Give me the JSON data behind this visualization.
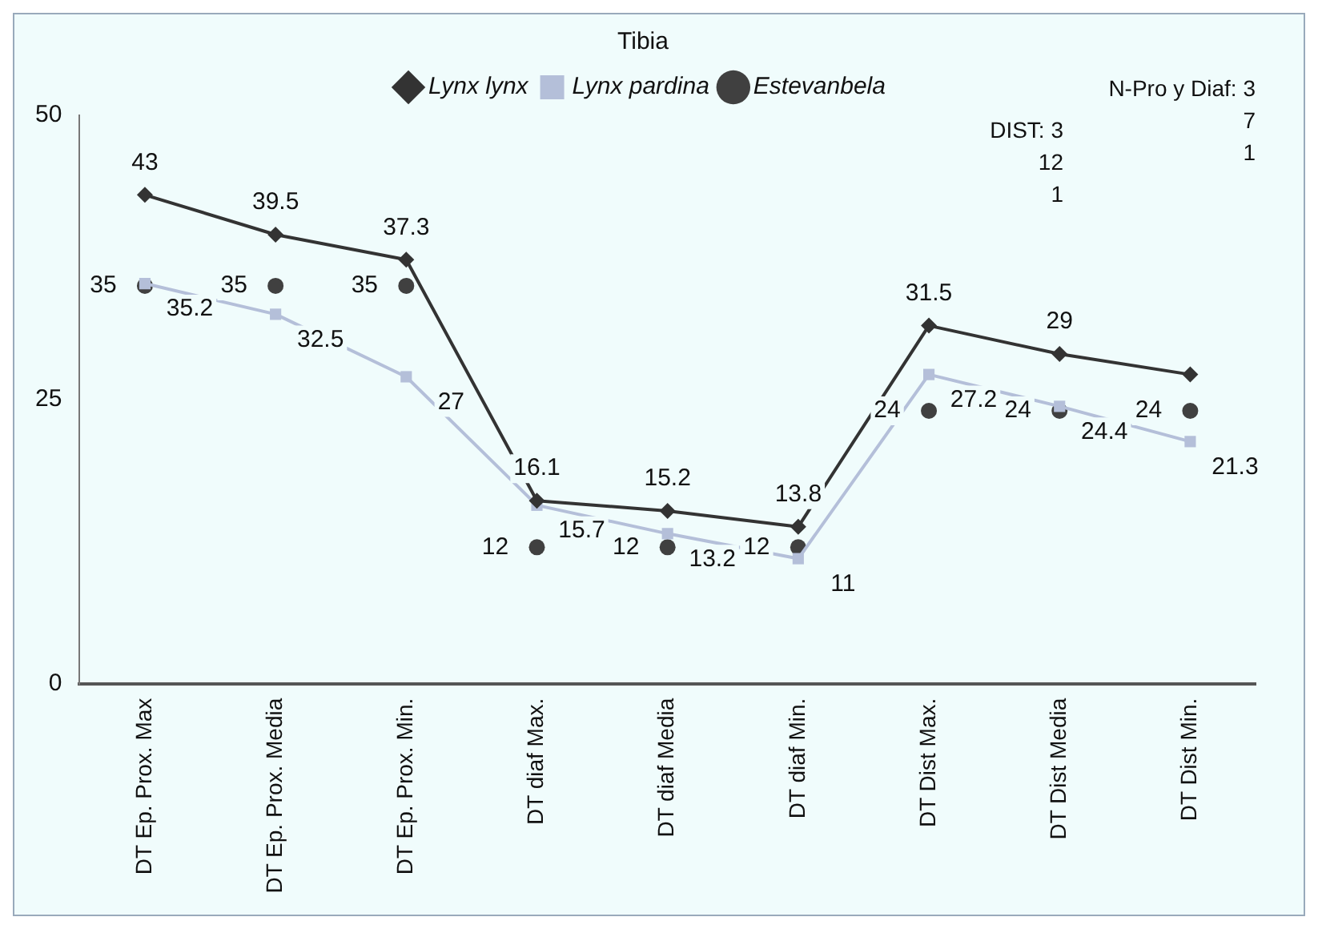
{
  "chart_data": {
    "type": "line",
    "categories": [
      "DT Ep. Prox. Max",
      "DT Ep. Prox. Media",
      "DT Ep. Prox. Min.",
      "DT diaf Max.",
      "DT diaf Media",
      "DT diaf Min.",
      "DT Dist Max.",
      "DT Dist Media",
      "DT Dist Min."
    ],
    "series": [
      {
        "name": "Lynx lynx",
        "color": "#333333",
        "marker": "diamond",
        "values": [
          43,
          39.5,
          37.3,
          16.1,
          15.2,
          13.8,
          31.5,
          29,
          27.2
        ],
        "value_labels": [
          "43",
          "39.5",
          "37.3",
          "16.1",
          "15.2",
          "13.8",
          "31.5",
          "29",
          null
        ]
      },
      {
        "name": "Lynx pardina",
        "color": "#b4bfd9",
        "marker": "square",
        "values": [
          35.2,
          32.5,
          27,
          15.7,
          13.2,
          11,
          27.2,
          24.4,
          21.3
        ],
        "value_labels": [
          "35.2",
          "32.5",
          "27",
          "15.7",
          "13.2",
          "11",
          "27.2",
          "24.4",
          "21.3"
        ]
      },
      {
        "name": "Estevanbela",
        "type": "scatter",
        "color": "#404040",
        "marker": "circle",
        "values": [
          35,
          35,
          35,
          12,
          12,
          12,
          24,
          24,
          24
        ],
        "value_labels": [
          "35",
          "35",
          "35",
          "12",
          "12",
          "12",
          "24",
          "24",
          "24"
        ]
      }
    ],
    "ylim": [
      0,
      50
    ],
    "yticks": [
      0,
      25,
      50
    ],
    "grid": false,
    "legend": "top right",
    "legend_title": "Tibia",
    "annotations": [
      "N-Pro y Diaf: 3\n7\n1",
      "DIST: 3\n12\n1"
    ]
  }
}
